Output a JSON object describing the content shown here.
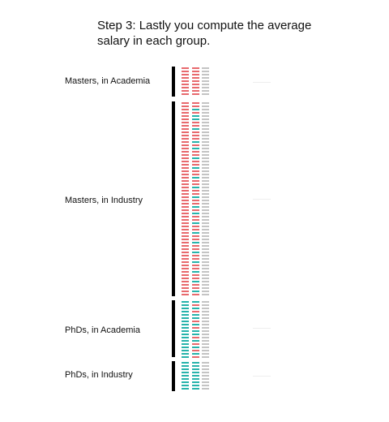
{
  "title": "Step 3: Lastly you compute the average salary in each group.",
  "colors": {
    "male": "#e8696d",
    "female": "#27b3ab",
    "salary": "#c4c4c4",
    "bracket": "#000000"
  },
  "groups": [
    {
      "label": "Masters, in Academia",
      "rows": 9,
      "gender": [
        "m",
        "m",
        "m",
        "m",
        "m",
        "m",
        "m",
        "m",
        "m"
      ]
    },
    {
      "label": "Masters, in Industry",
      "rows": 60,
      "gender": [
        "m",
        "m",
        "f",
        "m",
        "f",
        "f",
        "m",
        "m",
        "f",
        "m",
        "m",
        "m",
        "f",
        "m",
        "f",
        "m",
        "m",
        "f",
        "m",
        "m",
        "f",
        "m",
        "m",
        "f",
        "m",
        "m",
        "f",
        "m",
        "m",
        "f",
        "m",
        "m",
        "f",
        "m",
        "f",
        "m",
        "m",
        "f",
        "m",
        "m",
        "f",
        "m",
        "m",
        "f",
        "m",
        "m",
        "f",
        "m",
        "m",
        "f",
        "m",
        "m",
        "f",
        "m",
        "m",
        "f",
        "m",
        "m",
        "f",
        "m"
      ]
    },
    {
      "label": "PhDs, in Academia",
      "rows": 18,
      "gender": [
        "f",
        "m",
        "f",
        "m",
        "f",
        "f",
        "m",
        "f",
        "m",
        "f",
        "f",
        "m",
        "f",
        "m",
        "f",
        "m",
        "f",
        "m"
      ]
    },
    {
      "label": "PhDs, in Industry",
      "rows": 9,
      "gender": [
        "f",
        "f",
        "f",
        "f",
        "f",
        "f",
        "f",
        "f",
        "f"
      ]
    }
  ]
}
